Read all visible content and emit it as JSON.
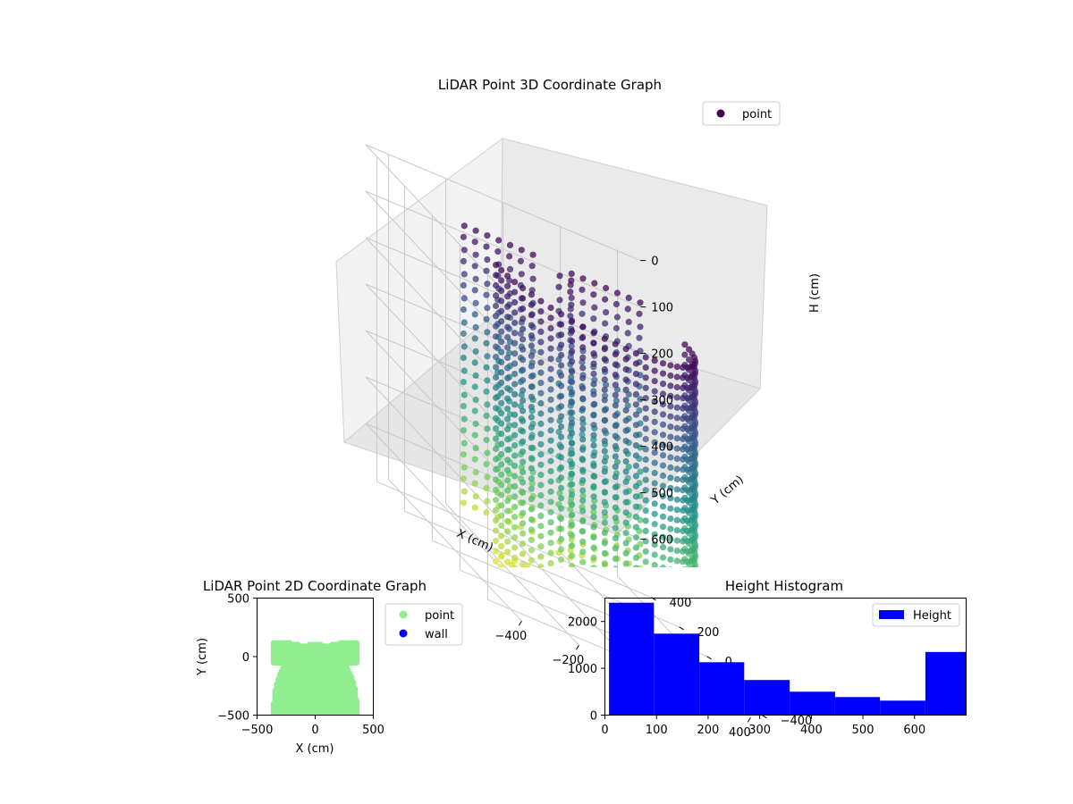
{
  "chart_data": [
    {
      "type": "scatter",
      "title": "LiDAR Point 3D Coordinate Graph",
      "xlabel": "X (cm)",
      "ylabel": "Y (cm)",
      "zlabel": "H (cm)",
      "x_ticks": [
        -400,
        -200,
        0,
        200,
        400
      ],
      "y_ticks": [
        -400,
        -200,
        0,
        200,
        400
      ],
      "z_ticks": [
        0,
        100,
        200,
        300,
        400,
        500,
        600
      ],
      "z_inverted": true,
      "colormap": "viridis",
      "legend": {
        "placement": "top-right",
        "entries": [
          {
            "label": "point",
            "color": "#440154"
          }
        ]
      }
    },
    {
      "type": "scatter",
      "title": "LiDAR Point 2D Coordinate Graph",
      "xlabel": "X (cm)",
      "ylabel": "Y (cm)",
      "xlim": [
        -500,
        500
      ],
      "ylim": [
        -500,
        500
      ],
      "x_ticks": [
        -500,
        0,
        500
      ],
      "y_ticks": [
        -500,
        0,
        500
      ],
      "series": [
        {
          "name": "point",
          "color": "#90ee90"
        },
        {
          "name": "wall",
          "color": "#0000ff"
        }
      ],
      "legend": {
        "placement": "outside-right"
      }
    },
    {
      "type": "bar",
      "title": "Height Histogram",
      "xlim": [
        0,
        700
      ],
      "ylim": [
        0,
        2500
      ],
      "x_ticks": [
        0,
        100,
        200,
        300,
        400,
        500,
        600
      ],
      "y_ticks": [
        0,
        1000,
        2000
      ],
      "bin_edges": [
        8,
        95,
        183,
        270,
        358,
        446,
        533,
        621,
        708
      ],
      "series": [
        {
          "name": "Height",
          "color": "#0000ff",
          "values": [
            2400,
            1740,
            1130,
            750,
            500,
            385,
            310,
            1350
          ]
        }
      ],
      "legend": {
        "placement": "top-right"
      }
    }
  ]
}
